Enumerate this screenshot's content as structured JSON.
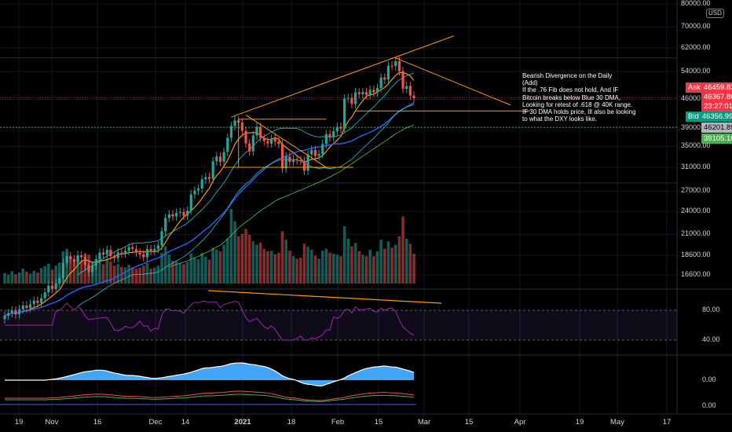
{
  "chart_data": {
    "type": "candlestick",
    "panes": [
      "price",
      "rsi",
      "oscillator-1",
      "oscillator-2"
    ],
    "price_axis": {
      "ticks": [
        80000,
        70000,
        62000,
        54000,
        46000,
        39000,
        35000,
        31000,
        27000,
        24000,
        21000,
        18600,
        16600
      ],
      "tick_labels": [
        "80000.00",
        "70000.00",
        "62000.00",
        "54000.00",
        "46000.00",
        "39000.00",
        "35000.00",
        "31000.00",
        "27000.00",
        "24000.00",
        "21000.00",
        "18600.00",
        "16600.00"
      ],
      "scale": "log",
      "currency": "USD"
    },
    "rsi_axis": {
      "tick_labels": [
        "80.00",
        "40.00"
      ],
      "ticks": [
        80,
        40
      ]
    },
    "osc1_axis": {
      "tick_labels": [
        "0.00"
      ]
    },
    "osc2_axis": {
      "tick_labels": [
        "0.00"
      ]
    },
    "x_axis": {
      "labels": [
        "19",
        "Nov",
        "16",
        "Dec",
        "14",
        "2021",
        "18",
        "Feb",
        "15",
        "Mar",
        "15",
        "Apr",
        "19",
        "May",
        "17"
      ],
      "bold_labels": [
        "2021"
      ]
    },
    "price_tags": [
      {
        "label": "Ask",
        "value": "46459.83",
        "color": "#f23645"
      },
      {
        "label": "",
        "value": "46367.80",
        "color": "#f23645"
      },
      {
        "label": "",
        "value": "23:27:01",
        "color": "#f23645"
      },
      {
        "label": "Bid",
        "value": "46356.99",
        "color": "#089981"
      },
      {
        "label": "",
        "value": "46201.89",
        "color": "#b2b5be"
      },
      {
        "label": "",
        "value": "39105.16",
        "color": "#4caf50"
      }
    ],
    "annotation": [
      "Bearish Divergence on the Daily",
      "(Add)",
      "If the .76 Fib does not hold, And IF",
      "Bitcoin breaks below Blue 30 DMA,",
      "Looking for retest of .618 @ 40K range.",
      "IF 30 DMA holds price, Ill also be looking",
      "to what the DXY looks like."
    ],
    "closes": [
      13100,
      13300,
      13500,
      13200,
      13600,
      13900,
      13700,
      14000,
      14300,
      14100,
      14500,
      15000,
      15600,
      15300,
      15800,
      16300,
      17800,
      18500,
      18200,
      17900,
      18600,
      18400,
      17600,
      16900,
      17500,
      18200,
      18900,
      18700,
      19200,
      18500,
      18300,
      18900,
      18800,
      19100,
      19500,
      19300,
      18900,
      18700,
      18400,
      19300,
      19100,
      19300,
      19700,
      21400,
      23100,
      23600,
      23300,
      23800,
      23900,
      23400,
      24100,
      26500,
      27100,
      27400,
      28900,
      29300,
      29000,
      32100,
      33000,
      32000,
      33900,
      36800,
      39400,
      40700,
      40200,
      38300,
      35600,
      34000,
      37300,
      39200,
      36800,
      36100,
      35600,
      36600,
      36000,
      35500,
      30800,
      33000,
      32000,
      32500,
      32300,
      32200,
      30400,
      33400,
      34300,
      33100,
      33500,
      35500,
      37600,
      36900,
      38200,
      39200,
      38800,
      46200,
      46400,
      44800,
      47900,
      47400,
      48000,
      47200,
      48600,
      47900,
      49100,
      52200,
      51600,
      55900,
      55800,
      57400,
      54200,
      48900,
      49700,
      47000,
      46300
    ],
    "volume": [
      2.1,
      1.8,
      2.5,
      1.9,
      2.2,
      3.0,
      2.4,
      2.0,
      2.6,
      2.2,
      3.1,
      3.5,
      4.0,
      2.8,
      3.6,
      4.2,
      6.5,
      7.0,
      5.5,
      4.8,
      5.2,
      4.6,
      6.0,
      5.8,
      4.5,
      4.3,
      5.0,
      3.9,
      4.8,
      4.4,
      3.6,
      3.9,
      3.4,
      3.2,
      3.8,
      3.3,
      3.0,
      3.2,
      3.6,
      4.1,
      3.0,
      3.2,
      3.6,
      6.2,
      7.5,
      5.8,
      4.6,
      4.5,
      4.1,
      3.9,
      4.3,
      6.0,
      5.2,
      4.9,
      6.1,
      5.4,
      4.8,
      7.2,
      6.8,
      6.5,
      7.8,
      9.0,
      15.0,
      12.5,
      9.5,
      10.0,
      11.0,
      9.8,
      8.5,
      7.8,
      8.2,
      7.0,
      6.5,
      6.6,
      5.9,
      6.2,
      10.5,
      8.8,
      6.6,
      5.5,
      5.0,
      5.2,
      8.0,
      7.4,
      6.8,
      5.6,
      5.0,
      6.6,
      7.0,
      6.2,
      6.0,
      5.8,
      5.5,
      11.5,
      9.0,
      7.5,
      8.2,
      6.5,
      5.8,
      5.5,
      6.8,
      5.5,
      6.5,
      8.8,
      7.0,
      8.5,
      7.2,
      7.8,
      9.5,
      13.5,
      9.0,
      8.0,
      6.0
    ]
  }
}
